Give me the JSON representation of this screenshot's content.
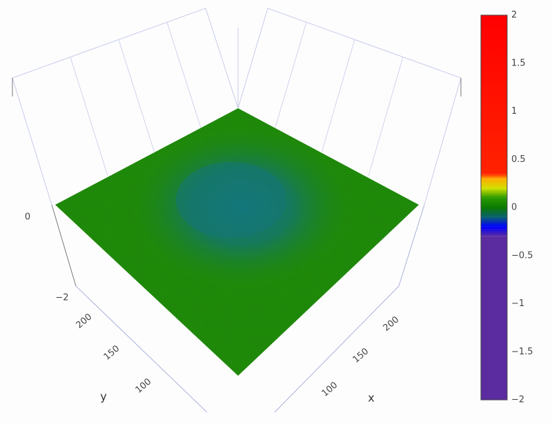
{
  "chart_data": {
    "type": "surface",
    "title": "",
    "axes": {
      "x": {
        "title": "x",
        "ticks": [
          "100",
          "150",
          "200"
        ],
        "range": [
          75,
          240
        ]
      },
      "y": {
        "title": "y",
        "ticks": [
          "100",
          "150",
          "200"
        ],
        "range": [
          75,
          240
        ]
      },
      "z": {
        "ticks": [
          "−2",
          "0"
        ],
        "range": [
          -2,
          2
        ]
      }
    },
    "surface": {
      "description_values": "nearly flat surface at z≈0 with a shallow depression (≈ -0.2) near the middle",
      "z_base": 0,
      "z_min": -0.2
    },
    "colorbar": {
      "ticks": [
        "2",
        "1.5",
        "1",
        "0.5",
        "0",
        "−0.5",
        "−1",
        "−1.5",
        "−2"
      ],
      "values": [
        2,
        1.5,
        1,
        0.5,
        0,
        -0.5,
        -1,
        -1.5,
        -2
      ],
      "range": [
        -2,
        2
      ],
      "colorscale": [
        {
          "value": -2,
          "color": "#5b2c9f"
        },
        {
          "value": -0.3,
          "color": "#5b2c9f"
        },
        {
          "value": -0.2,
          "color": "#0000ff"
        },
        {
          "value": -0.1,
          "color": "#0a6070"
        },
        {
          "value": 0,
          "color": "#0a7a00"
        },
        {
          "value": 0.1,
          "color": "#2a9a00"
        },
        {
          "value": 0.2,
          "color": "#d0e000"
        },
        {
          "value": 0.3,
          "color": "#ffaa00"
        },
        {
          "value": 0.35,
          "color": "#ff2200"
        },
        {
          "value": 2,
          "color": "#ff0000"
        }
      ]
    }
  }
}
